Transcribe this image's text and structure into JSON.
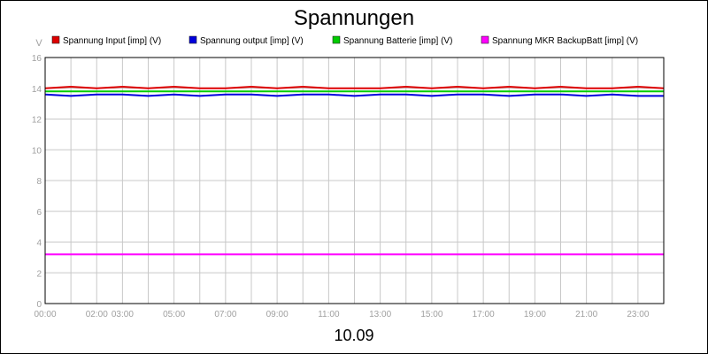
{
  "chart_data": {
    "type": "line",
    "title": "Spannungen",
    "ylabel": "V",
    "xlabel": "10.09",
    "ylim": [
      0,
      16
    ],
    "xlim_hours": [
      0,
      24
    ],
    "y_ticks": [
      0,
      2,
      4,
      6,
      8,
      10,
      12,
      14,
      16
    ],
    "x_tick_labels": [
      {
        "hour": 0,
        "label": "00:00"
      },
      {
        "hour": 2,
        "label": "02:00"
      },
      {
        "hour": 3,
        "label": "03:00"
      },
      {
        "hour": 5,
        "label": "05:00"
      },
      {
        "hour": 7,
        "label": "07:00"
      },
      {
        "hour": 9,
        "label": "09:00"
      },
      {
        "hour": 11,
        "label": "11:00"
      },
      {
        "hour": 13,
        "label": "13:00"
      },
      {
        "hour": 15,
        "label": "15:00"
      },
      {
        "hour": 17,
        "label": "17:00"
      },
      {
        "hour": 19,
        "label": "19:00"
      },
      {
        "hour": 21,
        "label": "21:00"
      },
      {
        "hour": 23,
        "label": "23:00"
      }
    ],
    "grid": true,
    "legend_placement": "top",
    "series": [
      {
        "name": "Spannung Input [imp] (V)",
        "color": "#dd0000",
        "x": [
          0,
          1,
          2,
          3,
          4,
          5,
          6,
          7,
          8,
          9,
          10,
          11,
          12,
          13,
          14,
          15,
          16,
          17,
          18,
          19,
          20,
          21,
          22,
          23,
          24
        ],
        "values": [
          14.0,
          14.1,
          14.0,
          14.1,
          14.0,
          14.1,
          14.0,
          14.0,
          14.1,
          14.0,
          14.1,
          14.0,
          14.0,
          14.0,
          14.1,
          14.0,
          14.1,
          14.0,
          14.1,
          14.0,
          14.1,
          14.0,
          14.0,
          14.1,
          14.0
        ]
      },
      {
        "name": "Spannung output [imp] (V)",
        "color": "#0000dd",
        "x": [
          0,
          1,
          2,
          3,
          4,
          5,
          6,
          7,
          8,
          9,
          10,
          11,
          12,
          13,
          14,
          15,
          16,
          17,
          18,
          19,
          20,
          21,
          22,
          23,
          24
        ],
        "values": [
          13.6,
          13.5,
          13.6,
          13.6,
          13.5,
          13.6,
          13.5,
          13.6,
          13.6,
          13.5,
          13.6,
          13.6,
          13.5,
          13.6,
          13.6,
          13.5,
          13.6,
          13.6,
          13.5,
          13.6,
          13.6,
          13.5,
          13.6,
          13.5,
          13.5
        ]
      },
      {
        "name": "Spannung Batterie [imp] (V)",
        "color": "#00cc00",
        "x": [
          0,
          1,
          2,
          3,
          4,
          5,
          6,
          7,
          8,
          9,
          10,
          11,
          12,
          13,
          14,
          15,
          16,
          17,
          18,
          19,
          20,
          21,
          22,
          23,
          24
        ],
        "values": [
          13.8,
          13.8,
          13.8,
          13.8,
          13.8,
          13.8,
          13.8,
          13.8,
          13.8,
          13.8,
          13.8,
          13.8,
          13.8,
          13.8,
          13.8,
          13.8,
          13.8,
          13.8,
          13.8,
          13.8,
          13.8,
          13.8,
          13.8,
          13.8,
          13.8
        ]
      },
      {
        "name": "Spannung MKR BackupBatt [imp] (V)",
        "color": "#ff00ff",
        "x": [
          0,
          24
        ],
        "values": [
          3.2,
          3.2
        ]
      }
    ]
  }
}
